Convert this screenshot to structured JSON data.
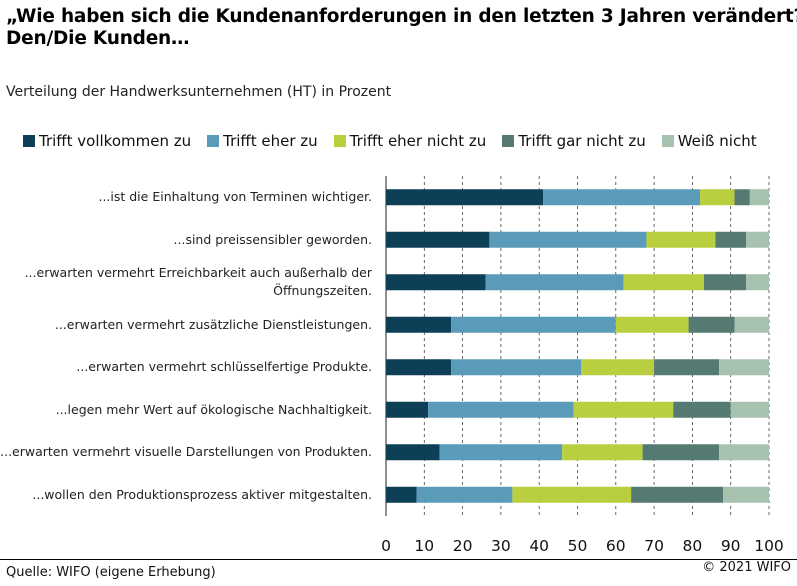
{
  "title_line1": "„Wie haben sich die Kundenanforderungen in den letzten 3 Jahren verändert?\"",
  "title_line2": "Den/Die Kunden…",
  "subtitle": "Verteilung der Handwerksunternehmen (HT) in Prozent",
  "footer": {
    "source": "Quelle: WIFO (eigene Erhebung)",
    "copyright": "© 2021 WIFO"
  },
  "colors": {
    "Trifft vollkommen zu": "#0d3f56",
    "Trifft eher zu": "#5a9bb9",
    "Trifft eher nicht zu": "#b9cf40",
    "Trifft gar nicht zu": "#557a72",
    "Weiß nicht": "#a8c2b0"
  },
  "chart_data": {
    "type": "bar",
    "orientation": "horizontal",
    "stacked": true,
    "xlim": [
      0,
      100
    ],
    "x_ticks": [
      "0",
      "10",
      "20",
      "30",
      "40",
      "50",
      "60",
      "70",
      "80",
      "90",
      "100"
    ],
    "grid": "vertical dashed",
    "legend_position": "top",
    "categories": [
      "...ist die Einhaltung von Terminen wichtiger.",
      "...sind preissensibler geworden.",
      "...erwarten vermehrt Erreichbarkeit auch außerhalb der Öffnungszeiten.",
      "...erwarten vermehrt zusätzliche Dienstleistungen.",
      "...erwarten vermehrt schlüsselfertige Produkte.",
      "...legen mehr Wert auf ökologische Nachhaltigkeit.",
      "...erwarten vermehrt visuelle Darstellungen von Produkten.",
      "...wollen den Produktionsprozess aktiver mitgestalten."
    ],
    "category_lines": [
      [
        "...ist die Einhaltung von Terminen wichtiger."
      ],
      [
        "...sind preissensibler geworden."
      ],
      [
        "...erwarten vermehrt Erreichbarkeit auch außerhalb der",
        "Öffnungszeiten."
      ],
      [
        "...erwarten vermehrt zusätzliche Dienstleistungen."
      ],
      [
        "...erwarten vermehrt schlüsselfertige Produkte."
      ],
      [
        "...legen mehr Wert auf ökologische Nachhaltigkeit."
      ],
      [
        "...erwarten vermehrt visuelle Darstellungen von Produkten."
      ],
      [
        "...wollen den Produktionsprozess aktiver mitgestalten."
      ]
    ],
    "series": [
      {
        "name": "Trifft vollkommen zu",
        "values": [
          41,
          27,
          26,
          17,
          17,
          11,
          14,
          8
        ]
      },
      {
        "name": "Trifft eher zu",
        "values": [
          41,
          41,
          36,
          43,
          34,
          38,
          32,
          25
        ]
      },
      {
        "name": "Trifft eher nicht zu",
        "values": [
          9,
          18,
          21,
          19,
          19,
          26,
          21,
          31
        ]
      },
      {
        "name": "Trifft gar nicht zu",
        "values": [
          4,
          8,
          11,
          12,
          17,
          15,
          20,
          24
        ]
      },
      {
        "name": "Weiß nicht",
        "values": [
          5,
          6,
          6,
          9,
          13,
          10,
          13,
          12
        ]
      }
    ]
  }
}
